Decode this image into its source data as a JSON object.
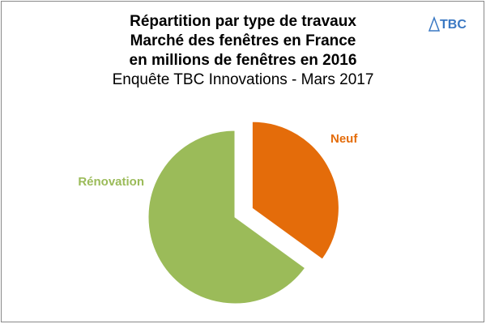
{
  "chart_data": {
    "type": "pie",
    "title": [
      "Répartition par type de travaux",
      "Marché des fenêtres en France",
      "en millions de fenêtres en 2016"
    ],
    "subtitle": "Enquête TBC Innovations - Mars 2017",
    "logo": "TBC",
    "categories": [
      "Neuf",
      "Rénovation"
    ],
    "values": [
      35,
      65
    ],
    "colors": [
      "#e46c0a",
      "#9bbb59"
    ],
    "exploded": [
      true,
      false
    ]
  }
}
